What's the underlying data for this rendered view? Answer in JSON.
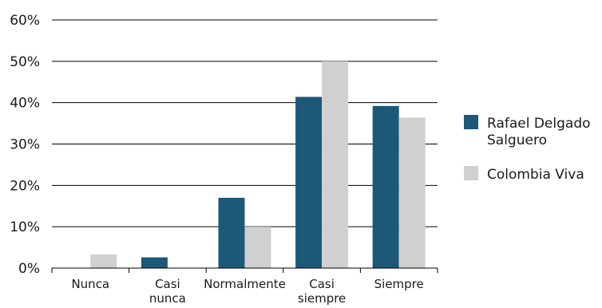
{
  "chart_data": {
    "type": "bar",
    "title": "",
    "xlabel": "",
    "ylabel": "",
    "categories": [
      [
        "Nunca"
      ],
      [
        "Casi",
        "nunca"
      ],
      [
        "Normalmente"
      ],
      [
        "Casi",
        "siempre"
      ],
      [
        "Siempre"
      ]
    ],
    "series": [
      {
        "name": "Rafael Delgado Salguero",
        "name_lines": [
          "Rafael Delgado",
          "Salguero"
        ],
        "color": "#1c5878",
        "values": [
          0,
          2.6,
          17,
          41.4,
          39.2
        ]
      },
      {
        "name": "Colombia Viva",
        "name_lines": [
          "Colombia Viva"
        ],
        "color": "#d0d0d0",
        "values": [
          3.3,
          0,
          10,
          50,
          36.4
        ]
      }
    ],
    "ylim": [
      0,
      60
    ],
    "yticks": [
      0,
      10,
      20,
      30,
      40,
      50,
      60
    ],
    "ytick_labels": [
      "0%",
      "10%",
      "20%",
      "30%",
      "40%",
      "50%",
      "60%"
    ],
    "grid": true,
    "legend_position": "right"
  }
}
